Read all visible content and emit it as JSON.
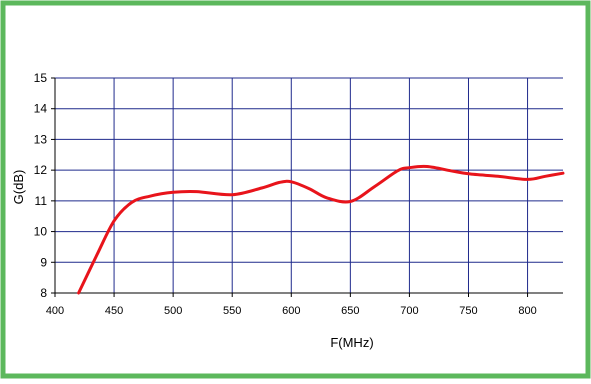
{
  "chart_data": {
    "type": "line",
    "title": "",
    "xlabel": "F(MHz)",
    "ylabel": "G(dB)",
    "xlim": [
      400,
      830
    ],
    "ylim": [
      8,
      15
    ],
    "xticks": [
      400,
      450,
      500,
      550,
      600,
      650,
      700,
      750,
      800
    ],
    "yticks": [
      8,
      9,
      10,
      11,
      12,
      13,
      14,
      15
    ],
    "grid": true,
    "series": [
      {
        "x": [
          420,
          435,
          450,
          465,
          480,
          500,
          520,
          550,
          575,
          590,
          600,
          615,
          630,
          650,
          670,
          690,
          700,
          715,
          735,
          750,
          775,
          800,
          815,
          830
        ],
        "y": [
          8.0,
          9.2,
          10.35,
          10.95,
          11.15,
          11.28,
          11.3,
          11.2,
          11.42,
          11.6,
          11.62,
          11.4,
          11.1,
          10.98,
          11.45,
          11.98,
          12.08,
          12.12,
          11.98,
          11.88,
          11.8,
          11.7,
          11.8,
          11.9
        ],
        "color": "#e8141b"
      }
    ],
    "colors": {
      "border": "#5cb85c",
      "grid": "#1f2a8c",
      "axis": "#000000"
    }
  }
}
